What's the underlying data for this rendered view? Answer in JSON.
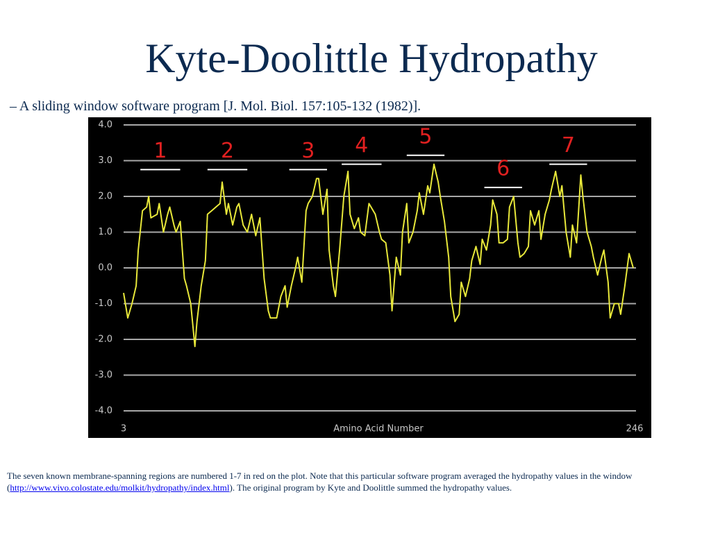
{
  "chart_data": {
    "type": "line",
    "title": "Kyte-Doolittle Hydropathy",
    "subtitle": "– A sliding window software program [J. Mol. Biol. 157:105-132 (1982)].",
    "xlabel": "Amino Acid Number",
    "color": "#e8e83a",
    "grid": true,
    "xlim": [
      3,
      246
    ],
    "xticks": [
      3,
      246
    ],
    "ylim": [
      -4,
      4
    ],
    "yticks": [
      {
        "value": -4,
        "label": "-4.0"
      },
      {
        "value": -3,
        "label": "-3.0"
      },
      {
        "value": -2,
        "label": "-2.0"
      },
      {
        "value": -1,
        "label": "-1.0"
      },
      {
        "value": 0,
        "label": "0.0"
      },
      {
        "value": 1,
        "label": "1.0"
      },
      {
        "value": 2,
        "label": "2.0"
      },
      {
        "value": 3,
        "label": "3.0"
      },
      {
        "value": 4,
        "label": "4.0"
      }
    ],
    "x": [
      3,
      5,
      7,
      9,
      10,
      12,
      14,
      15,
      16,
      19,
      20,
      22,
      24,
      25,
      27,
      28,
      30,
      32,
      33,
      35,
      37,
      38,
      40,
      42,
      43,
      45,
      47,
      49,
      50,
      52,
      53,
      55,
      57,
      58,
      60,
      62,
      64,
      66,
      68,
      70,
      72,
      73,
      76,
      78,
      80,
      81,
      83,
      85,
      86,
      88,
      90,
      91,
      93,
      95,
      96,
      98,
      100,
      101,
      103,
      104,
      106,
      108,
      110,
      111,
      113,
      115,
      116,
      118,
      120,
      121,
      123,
      125,
      126,
      128,
      130,
      131,
      133,
      135,
      136,
      138,
      139,
      141,
      143,
      144,
      146,
      148,
      149,
      151,
      153,
      154,
      156,
      158,
      159,
      161,
      163,
      164,
      166,
      168,
      169,
      171,
      173,
      174,
      176,
      178,
      179,
      181,
      182,
      184,
      186,
      187,
      189,
      191,
      192,
      194,
      196,
      197,
      199,
      201,
      202,
      204,
      206,
      207,
      209,
      211,
      212,
      214,
      216,
      217,
      219,
      221,
      222,
      224,
      226,
      227,
      229,
      231,
      232,
      234,
      235,
      237,
      239,
      240,
      242,
      244,
      246
    ],
    "values": [
      -0.7,
      -1.4,
      -1.0,
      -0.5,
      0.5,
      1.6,
      1.7,
      2.0,
      1.4,
      1.5,
      1.8,
      1.0,
      1.5,
      1.7,
      1.2,
      1.0,
      1.3,
      -0.3,
      -0.5,
      -1.0,
      -2.2,
      -1.5,
      -0.5,
      0.2,
      1.5,
      1.6,
      1.7,
      1.8,
      2.4,
      1.5,
      1.8,
      1.2,
      1.7,
      1.8,
      1.2,
      1.0,
      1.5,
      0.9,
      1.4,
      -0.3,
      -1.2,
      -1.4,
      -1.4,
      -0.8,
      -0.5,
      -1.1,
      -0.5,
      0.0,
      0.3,
      -0.4,
      1.6,
      1.8,
      2.0,
      2.5,
      2.5,
      1.5,
      2.2,
      0.5,
      -0.5,
      -0.8,
      0.5,
      2.0,
      2.7,
      1.5,
      1.1,
      1.4,
      1.0,
      0.9,
      1.8,
      1.7,
      1.5,
      1.0,
      0.8,
      0.7,
      -0.2,
      -1.2,
      0.3,
      -0.2,
      1.0,
      1.8,
      0.7,
      1.0,
      1.6,
      2.1,
      1.5,
      2.3,
      2.1,
      2.9,
      2.4,
      2.0,
      1.3,
      0.3,
      -0.8,
      -1.5,
      -1.3,
      -0.4,
      -0.8,
      -0.3,
      0.2,
      0.6,
      0.1,
      0.8,
      0.5,
      1.2,
      1.9,
      1.5,
      0.7,
      0.7,
      0.8,
      1.7,
      2.0,
      0.7,
      0.3,
      0.4,
      0.6,
      1.6,
      1.2,
      1.6,
      0.8,
      1.5,
      1.9,
      2.2,
      2.7,
      2.0,
      2.3,
      1.0,
      0.3,
      1.2,
      0.7,
      2.6,
      2.0,
      1.0,
      0.6,
      0.3,
      -0.2,
      0.3,
      0.5,
      -0.4,
      -1.4,
      -1.0,
      -1.0,
      -1.3,
      -0.5,
      0.4,
      0.0
    ],
    "regions": [
      {
        "label": "1",
        "start": 11,
        "end": 30,
        "level": 2.75
      },
      {
        "label": "2",
        "start": 43,
        "end": 62,
        "level": 2.75
      },
      {
        "label": "3",
        "start": 82,
        "end": 100,
        "level": 2.75
      },
      {
        "label": "4",
        "start": 107,
        "end": 126,
        "level": 2.9
      },
      {
        "label": "5",
        "start": 138,
        "end": 156,
        "level": 3.15
      },
      {
        "label": "6",
        "start": 175,
        "end": 193,
        "level": 2.25
      },
      {
        "label": "7",
        "start": 206,
        "end": 224,
        "level": 2.9
      }
    ],
    "region_label_color": "#e02020",
    "region_bar_color": "#ffffff"
  },
  "caption": {
    "text1": "The seven known membrane-spanning regions are numbered 1-7 in red on the plot.  Note that this particular software program averaged the hydropathy values in the window ",
    "open": "(",
    "link": "http://www.vivo.colostate.edu/molkit/hydropathy/index.html",
    "text2": ").  The original program by Kyte and Doolittle summed the hydropathy values."
  }
}
